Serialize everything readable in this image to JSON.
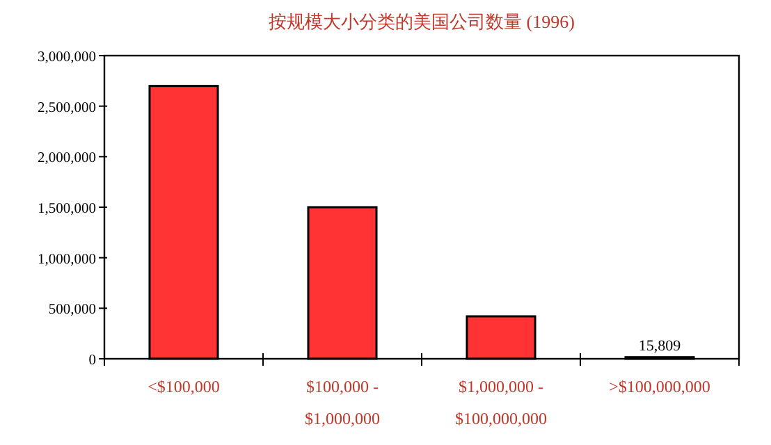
{
  "chart_data": {
    "type": "bar",
    "title": "按规模大小分类的美国公司数量 (1996)",
    "categories": [
      "<$100,000",
      "$100,000 - $1,000,000",
      "$1,000,000 - $100,000,000",
      ">$100,000,000"
    ],
    "values": [
      2700000,
      1500000,
      420000,
      15809
    ],
    "value_labels": [
      null,
      null,
      null,
      "15,809"
    ],
    "color": "#ff3333",
    "ylim": [
      0,
      3000000
    ],
    "yticks": [
      {
        "value": 0,
        "label": "0"
      },
      {
        "value": 500000,
        "label": "500,000"
      },
      {
        "value": 1000000,
        "label": "1,000,000"
      },
      {
        "value": 1500000,
        "label": "1,500,000"
      },
      {
        "value": 2000000,
        "label": "2,000,000"
      },
      {
        "value": 2500000,
        "label": "2,500,000"
      },
      {
        "value": 3000000,
        "label": "3,000,000"
      }
    ],
    "grid": false
  }
}
